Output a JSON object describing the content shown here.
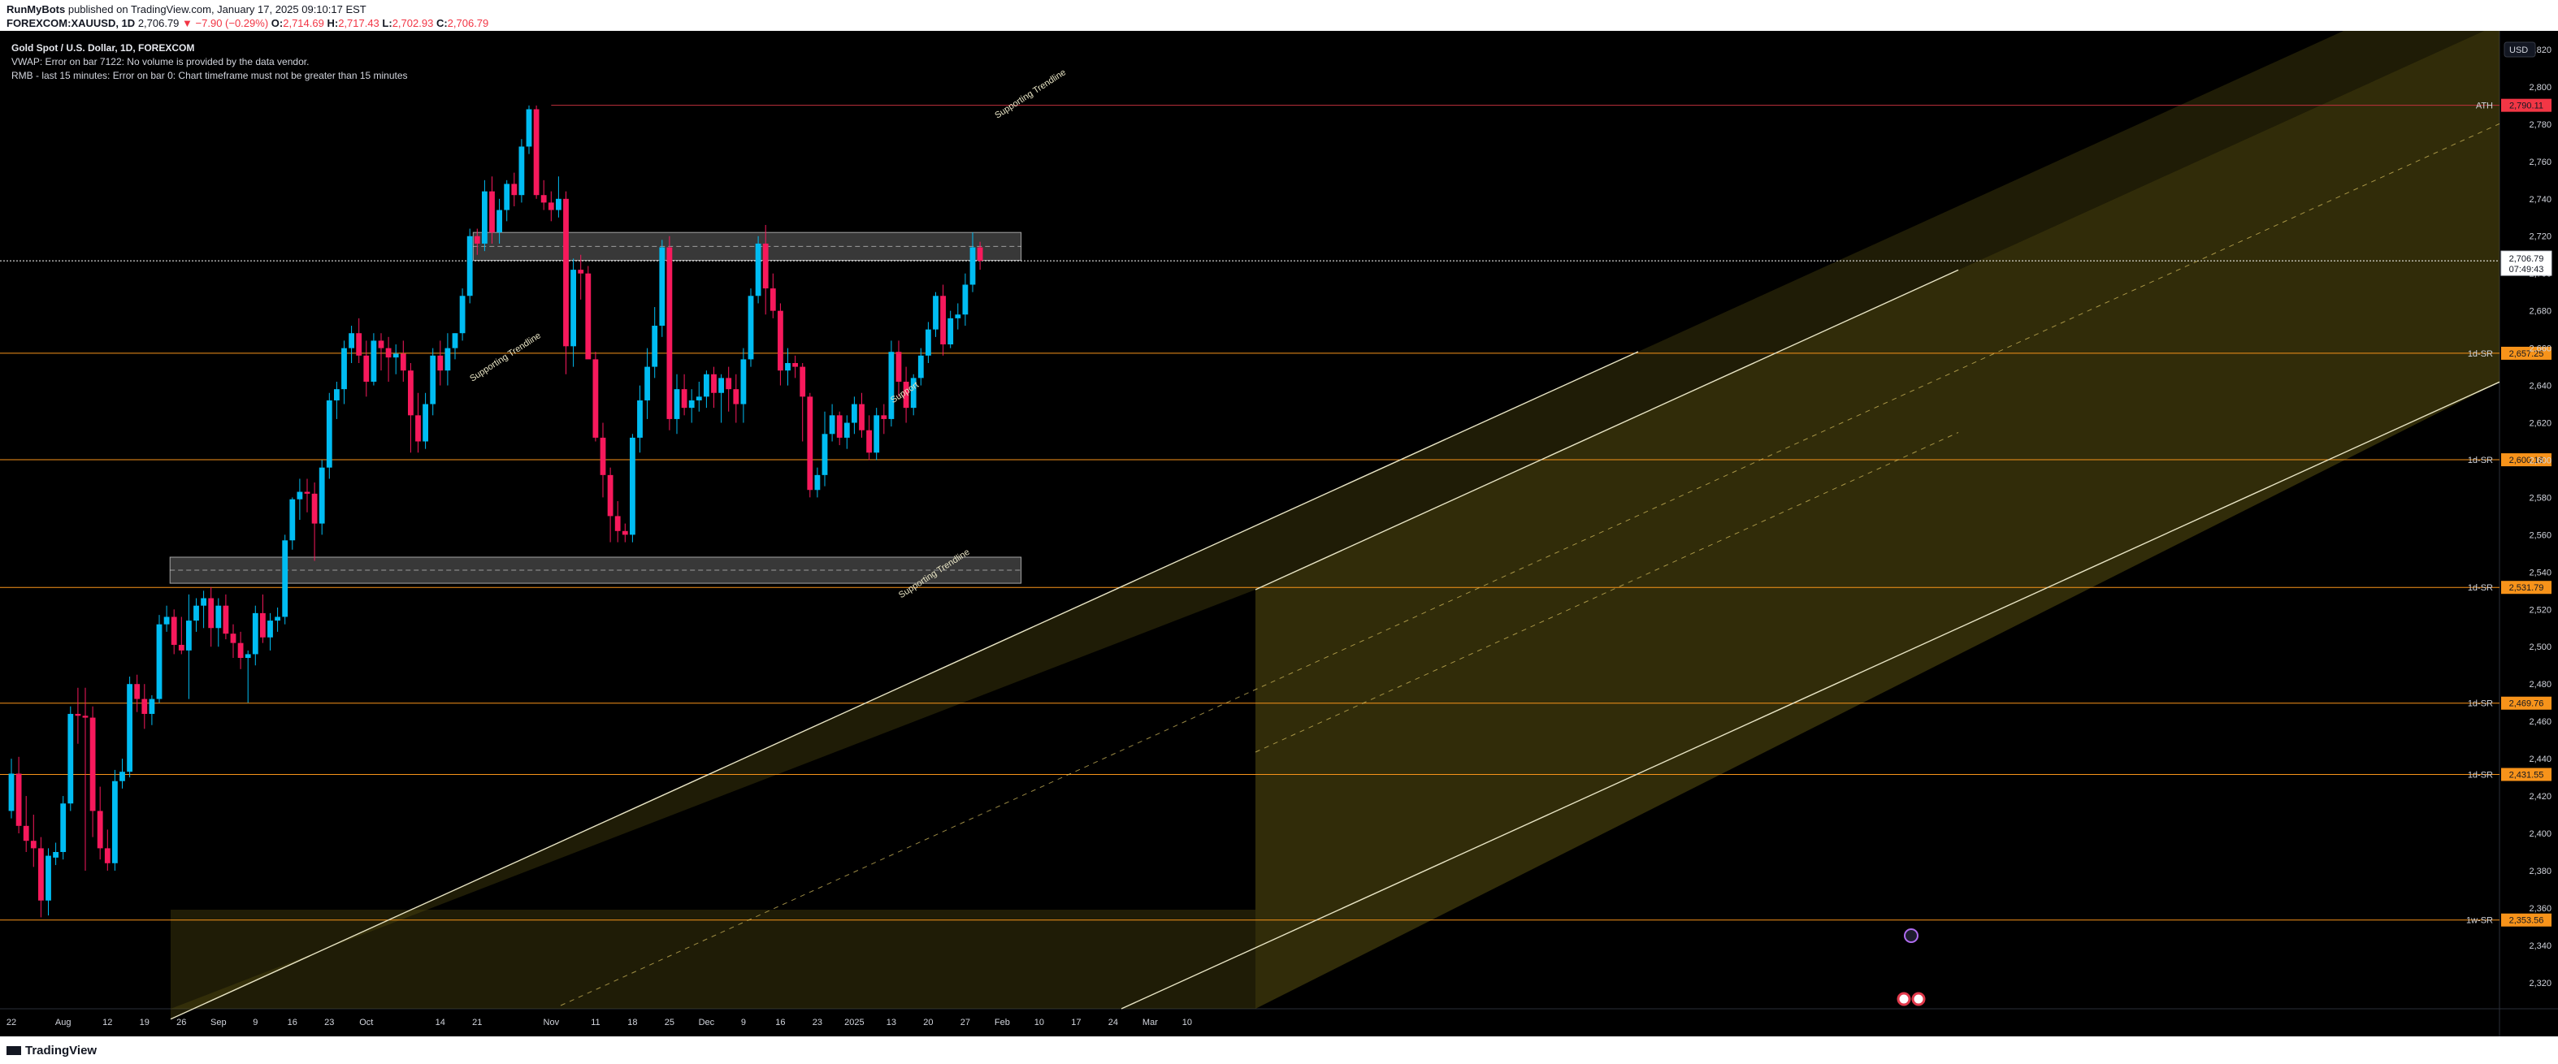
{
  "header": {
    "author": "RunMyBots",
    "published_text": "published on TradingView.com, January 17, 2025 09:10:17 EST",
    "symbol": "FOREXCOM:XAUUSD, 1D",
    "last": "2,706.79",
    "change": "▼ −7.90 (−0.29%)",
    "o_label": "O:",
    "o": "2,714.69",
    "h_label": "H:",
    "h": "2,717.43",
    "l_label": "L:",
    "l": "2,702.93",
    "c_label": "C:",
    "c": "2,706.79"
  },
  "legend": {
    "title": "Gold Spot / U.S. Dollar, 1D, FOREXCOM",
    "vwap_error": "VWAP: Error on bar 7122: No volume is provided by the data vendor.",
    "rmb_error": "RMB - last 15 minutes: Error on bar 0: Chart timeframe must not be greater than 15 minutes"
  },
  "footer": {
    "brand": "TradingView"
  },
  "colors": {
    "background": "#000000",
    "up": "#00bcf2",
    "down": "#f7195c",
    "channel_fill": "#5a5010",
    "sr_line": "#f7931a",
    "ath_line": "#c0303c",
    "axis_text": "#d1d4dc"
  },
  "chart_data": {
    "type": "candlestick",
    "symbol": "XAUUSD",
    "currency": "USD",
    "ylim": [
      2306,
      2830
    ],
    "y_ticks": [
      2320,
      2340,
      2360,
      2380,
      2400,
      2420,
      2440,
      2460,
      2480,
      2500,
      2520,
      2540,
      2560,
      2580,
      2600,
      2620,
      2640,
      2660,
      2680,
      2700,
      2720,
      2740,
      2760,
      2780,
      2800,
      2820
    ],
    "x_ticks": [
      {
        "i": 0,
        "label": "22"
      },
      {
        "i": 7,
        "label": "Aug"
      },
      {
        "i": 13,
        "label": "12"
      },
      {
        "i": 18,
        "label": "19"
      },
      {
        "i": 23,
        "label": "26"
      },
      {
        "i": 28,
        "label": "Sep"
      },
      {
        "i": 33,
        "label": "9"
      },
      {
        "i": 38,
        "label": "16"
      },
      {
        "i": 43,
        "label": "23"
      },
      {
        "i": 48,
        "label": "Oct"
      },
      {
        "i": 58,
        "label": "14"
      },
      {
        "i": 63,
        "label": "21"
      },
      {
        "i": 73,
        "label": "Nov"
      },
      {
        "i": 79,
        "label": "11"
      },
      {
        "i": 84,
        "label": "18"
      },
      {
        "i": 89,
        "label": "25"
      },
      {
        "i": 94,
        "label": "Dec"
      },
      {
        "i": 99,
        "label": "9"
      },
      {
        "i": 104,
        "label": "16"
      },
      {
        "i": 109,
        "label": "23"
      },
      {
        "i": 114,
        "label": "2025"
      },
      {
        "i": 119,
        "label": "13"
      },
      {
        "i": 124,
        "label": "20"
      },
      {
        "i": 129,
        "label": "27"
      },
      {
        "i": 134,
        "label": "Feb"
      },
      {
        "i": 139,
        "label": "10"
      },
      {
        "i": 144,
        "label": "17"
      },
      {
        "i": 149,
        "label": "24"
      },
      {
        "i": 154,
        "label": "Mar"
      },
      {
        "i": 159,
        "label": "10"
      }
    ],
    "candles": [
      [
        2412,
        2440,
        2408,
        2432
      ],
      [
        2432,
        2441,
        2400,
        2404
      ],
      [
        2404,
        2420,
        2390,
        2396
      ],
      [
        2396,
        2410,
        2382,
        2392
      ],
      [
        2392,
        2398,
        2355,
        2364
      ],
      [
        2364,
        2392,
        2356,
        2388
      ],
      [
        2387,
        2395,
        2383,
        2390
      ],
      [
        2390,
        2420,
        2386,
        2416
      ],
      [
        2416,
        2468,
        2412,
        2464
      ],
      [
        2464,
        2478,
        2448,
        2463
      ],
      [
        2463,
        2478,
        2380,
        2462
      ],
      [
        2462,
        2468,
        2398,
        2412
      ],
      [
        2412,
        2425,
        2386,
        2392
      ],
      [
        2392,
        2402,
        2380,
        2384
      ],
      [
        2384,
        2434,
        2380,
        2428
      ],
      [
        2428,
        2440,
        2424,
        2433
      ],
      [
        2433,
        2484,
        2430,
        2480
      ],
      [
        2480,
        2485,
        2465,
        2472
      ],
      [
        2472,
        2480,
        2456,
        2464
      ],
      [
        2464,
        2474,
        2458,
        2472
      ],
      [
        2472,
        2517,
        2470,
        2512
      ],
      [
        2512,
        2522,
        2508,
        2516
      ],
      [
        2516,
        2520,
        2496,
        2501
      ],
      [
        2501,
        2516,
        2496,
        2498
      ],
      [
        2498,
        2528,
        2472,
        2514
      ],
      [
        2514,
        2526,
        2508,
        2522
      ],
      [
        2522,
        2530,
        2510,
        2526
      ],
      [
        2526,
        2532,
        2500,
        2510
      ],
      [
        2510,
        2526,
        2500,
        2522
      ],
      [
        2522,
        2528,
        2504,
        2507
      ],
      [
        2507,
        2512,
        2494,
        2502
      ],
      [
        2502,
        2508,
        2488,
        2494
      ],
      [
        2494,
        2498,
        2470,
        2496
      ],
      [
        2496,
        2522,
        2490,
        2518
      ],
      [
        2518,
        2528,
        2502,
        2505
      ],
      [
        2505,
        2518,
        2498,
        2514
      ],
      [
        2514,
        2521,
        2508,
        2516
      ],
      [
        2516,
        2560,
        2512,
        2557
      ],
      [
        2557,
        2580,
        2552,
        2579
      ],
      [
        2579,
        2590,
        2568,
        2583
      ],
      [
        2583,
        2590,
        2572,
        2582
      ],
      [
        2582,
        2588,
        2546,
        2566
      ],
      [
        2566,
        2600,
        2560,
        2596
      ],
      [
        2596,
        2636,
        2590,
        2632
      ],
      [
        2632,
        2642,
        2622,
        2638
      ],
      [
        2638,
        2664,
        2630,
        2660
      ],
      [
        2660,
        2672,
        2652,
        2668
      ],
      [
        2668,
        2676,
        2652,
        2656
      ],
      [
        2656,
        2664,
        2634,
        2642
      ],
      [
        2642,
        2668,
        2640,
        2664
      ],
      [
        2664,
        2668,
        2648,
        2660
      ],
      [
        2660,
        2666,
        2642,
        2655
      ],
      [
        2655,
        2662,
        2646,
        2657
      ],
      [
        2657,
        2664,
        2642,
        2648
      ],
      [
        2648,
        2652,
        2604,
        2624
      ],
      [
        2624,
        2636,
        2604,
        2610
      ],
      [
        2610,
        2636,
        2606,
        2630
      ],
      [
        2630,
        2660,
        2624,
        2656
      ],
      [
        2656,
        2664,
        2640,
        2648
      ],
      [
        2648,
        2668,
        2640,
        2660
      ],
      [
        2660,
        2668,
        2654,
        2668
      ],
      [
        2668,
        2692,
        2664,
        2688
      ],
      [
        2688,
        2724,
        2684,
        2720
      ],
      [
        2720,
        2724,
        2710,
        2716
      ],
      [
        2716,
        2750,
        2712,
        2744
      ],
      [
        2744,
        2752,
        2716,
        2722
      ],
      [
        2722,
        2740,
        2716,
        2734
      ],
      [
        2734,
        2750,
        2728,
        2748
      ],
      [
        2748,
        2754,
        2736,
        2742
      ],
      [
        2742,
        2772,
        2738,
        2768
      ],
      [
        2768,
        2790,
        2764,
        2788
      ],
      [
        2788,
        2790,
        2740,
        2742
      ],
      [
        2742,
        2750,
        2734,
        2738
      ],
      [
        2738,
        2744,
        2728,
        2734
      ],
      [
        2734,
        2752,
        2730,
        2740
      ],
      [
        2740,
        2744,
        2646,
        2661
      ],
      [
        2661,
        2708,
        2650,
        2702
      ],
      [
        2702,
        2710,
        2686,
        2700
      ],
      [
        2700,
        2704,
        2656,
        2654
      ],
      [
        2654,
        2658,
        2610,
        2612
      ],
      [
        2612,
        2620,
        2580,
        2592
      ],
      [
        2592,
        2596,
        2556,
        2570
      ],
      [
        2570,
        2578,
        2556,
        2562
      ],
      [
        2562,
        2566,
        2556,
        2560
      ],
      [
        2560,
        2614,
        2556,
        2612
      ],
      [
        2612,
        2640,
        2604,
        2632
      ],
      [
        2632,
        2660,
        2622,
        2650
      ],
      [
        2650,
        2682,
        2644,
        2672
      ],
      [
        2672,
        2718,
        2666,
        2714
      ],
      [
        2714,
        2720,
        2616,
        2622
      ],
      [
        2622,
        2646,
        2614,
        2638
      ],
      [
        2638,
        2646,
        2624,
        2628
      ],
      [
        2628,
        2638,
        2620,
        2632
      ],
      [
        2632,
        2642,
        2626,
        2634
      ],
      [
        2634,
        2648,
        2628,
        2646
      ],
      [
        2646,
        2650,
        2628,
        2636
      ],
      [
        2636,
        2646,
        2620,
        2644
      ],
      [
        2644,
        2650,
        2626,
        2638
      ],
      [
        2638,
        2646,
        2620,
        2630
      ],
      [
        2630,
        2660,
        2620,
        2654
      ],
      [
        2654,
        2692,
        2650,
        2688
      ],
      [
        2688,
        2720,
        2684,
        2716
      ],
      [
        2716,
        2726,
        2678,
        2692
      ],
      [
        2692,
        2700,
        2676,
        2680
      ],
      [
        2680,
        2684,
        2640,
        2648
      ],
      [
        2648,
        2660,
        2640,
        2652
      ],
      [
        2652,
        2656,
        2644,
        2650
      ],
      [
        2650,
        2652,
        2610,
        2634
      ],
      [
        2634,
        2636,
        2580,
        2584
      ],
      [
        2584,
        2596,
        2580,
        2592
      ],
      [
        2592,
        2626,
        2586,
        2614
      ],
      [
        2614,
        2630,
        2610,
        2624
      ],
      [
        2624,
        2626,
        2608,
        2612
      ],
      [
        2612,
        2624,
        2606,
        2620
      ],
      [
        2620,
        2634,
        2614,
        2630
      ],
      [
        2630,
        2636,
        2612,
        2616
      ],
      [
        2616,
        2624,
        2600,
        2604
      ],
      [
        2604,
        2628,
        2600,
        2624
      ],
      [
        2624,
        2630,
        2614,
        2622
      ],
      [
        2622,
        2664,
        2618,
        2658
      ],
      [
        2658,
        2664,
        2634,
        2642
      ],
      [
        2642,
        2650,
        2620,
        2628
      ],
      [
        2628,
        2646,
        2624,
        2644
      ],
      [
        2644,
        2660,
        2640,
        2656
      ],
      [
        2656,
        2674,
        2652,
        2670
      ],
      [
        2670,
        2690,
        2666,
        2688
      ],
      [
        2688,
        2694,
        2656,
        2662
      ],
      [
        2662,
        2680,
        2660,
        2676
      ],
      [
        2676,
        2684,
        2670,
        2678
      ],
      [
        2678,
        2700,
        2672,
        2694
      ],
      [
        2694,
        2722,
        2690,
        2714
      ],
      [
        2714,
        2717,
        2702,
        2706.79
      ]
    ],
    "levels": [
      {
        "label": "ATH",
        "value": 2790.11,
        "price_text": "2,790.11",
        "kind": "ath"
      },
      {
        "label": "1d-SR",
        "value": 2657.25,
        "price_text": "2,657.25",
        "kind": "sr"
      },
      {
        "label": "1d-SR",
        "value": 2600.18,
        "price_text": "2,600.18",
        "kind": "sr"
      },
      {
        "label": "1d-SR",
        "value": 2531.79,
        "price_text": "2,531.79",
        "kind": "sr"
      },
      {
        "label": "1d-SR",
        "value": 2469.76,
        "price_text": "2,469.76",
        "kind": "sr"
      },
      {
        "label": "1d-SR",
        "value": 2431.55,
        "price_text": "2,431.55",
        "kind": "sr"
      },
      {
        "label": "1w-SR",
        "value": 2353.56,
        "price_text": "2,353.56",
        "kind": "sr"
      }
    ],
    "current_price": {
      "value": 2706.79,
      "price_text": "2,706.79",
      "countdown": "07:49:43"
    },
    "zones": [
      {
        "i0": 63,
        "i1": 136,
        "top": 2722,
        "bottom": 2707
      },
      {
        "i0": 22,
        "i1": 136,
        "top": 2548,
        "bottom": 2534
      }
    ],
    "annotations": [
      {
        "text": "Supporting Trendline",
        "i": 67,
        "price": 2654,
        "angle": -33
      },
      {
        "text": "Supporting Trendline",
        "i": 138,
        "price": 2795,
        "angle": -33
      },
      {
        "text": "Supporting Trendline",
        "i": 125,
        "price": 2538,
        "angle": -33
      },
      {
        "text": "Support",
        "i": 121,
        "price": 2635,
        "angle": -33
      }
    ]
  }
}
